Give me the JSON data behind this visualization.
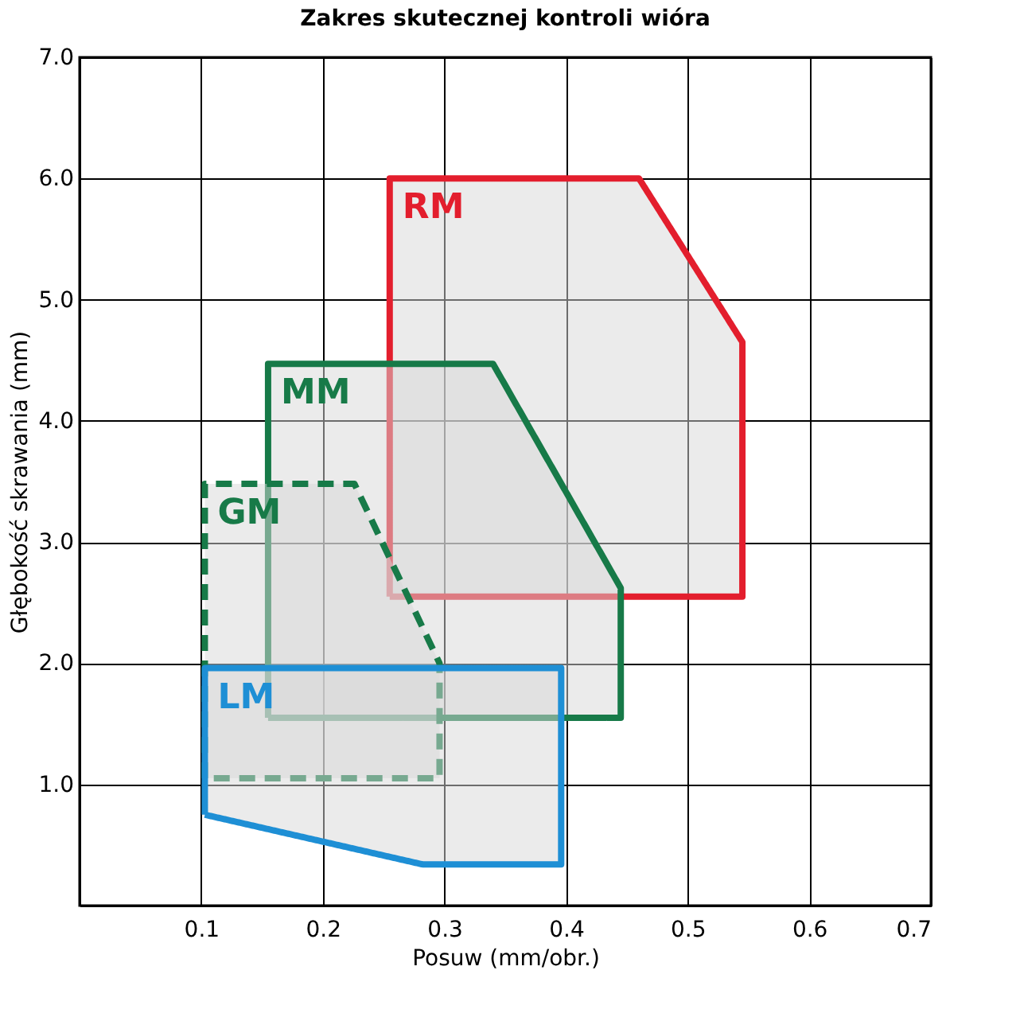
{
  "chart_data": {
    "type": "area",
    "title": "Zakres skutecznej kontroli wióra",
    "xlabel": "Posuw (mm/obr.)",
    "ylabel": "Głębokość skrawania (mm)",
    "xlim": [
      0,
      0.7
    ],
    "xticks": [
      0.1,
      0.2,
      0.3,
      0.4,
      0.5,
      0.6,
      0.7
    ],
    "ylim": [
      0,
      7
    ],
    "yticks": [
      {
        "value": 1,
        "label": "1.0"
      },
      {
        "value": 2,
        "label": "2.0"
      },
      {
        "value": 3,
        "label": "3.0"
      },
      {
        "value": 4,
        "label": "4.0"
      },
      {
        "value": 5,
        "label": "5.0"
      },
      {
        "value": 6,
        "label": "6.0"
      },
      {
        "value": 7,
        "label": "7.0"
      }
    ],
    "grid": true,
    "marker": "none",
    "series": [
      {
        "name": "RM",
        "color": "#e31e2d",
        "line_style": "solid",
        "x": [
          0.255,
          0.255,
          0.46,
          0.545,
          0.545,
          0.255
        ],
        "values": [
          2.55,
          6.0,
          6.0,
          4.65,
          2.55,
          2.55
        ]
      },
      {
        "name": "MM",
        "color": "#177a48",
        "line_style": "solid",
        "x": [
          0.155,
          0.155,
          0.34,
          0.445,
          0.445,
          0.155
        ],
        "values": [
          1.55,
          4.47,
          4.47,
          2.62,
          1.55,
          1.55
        ]
      },
      {
        "name": "GM",
        "color": "#177a48",
        "line_style": "dashed",
        "x": [
          0.103,
          0.103,
          0.226,
          0.296,
          0.296,
          0.103
        ],
        "values": [
          1.05,
          3.48,
          3.48,
          2.0,
          1.05,
          1.05
        ]
      },
      {
        "name": "LM",
        "color": "#1e8fd5",
        "line_style": "solid",
        "x": [
          0.103,
          0.103,
          0.396,
          0.396,
          0.282,
          0.103
        ],
        "values": [
          0.75,
          1.96,
          1.96,
          0.34,
          0.34,
          0.75
        ]
      }
    ]
  }
}
